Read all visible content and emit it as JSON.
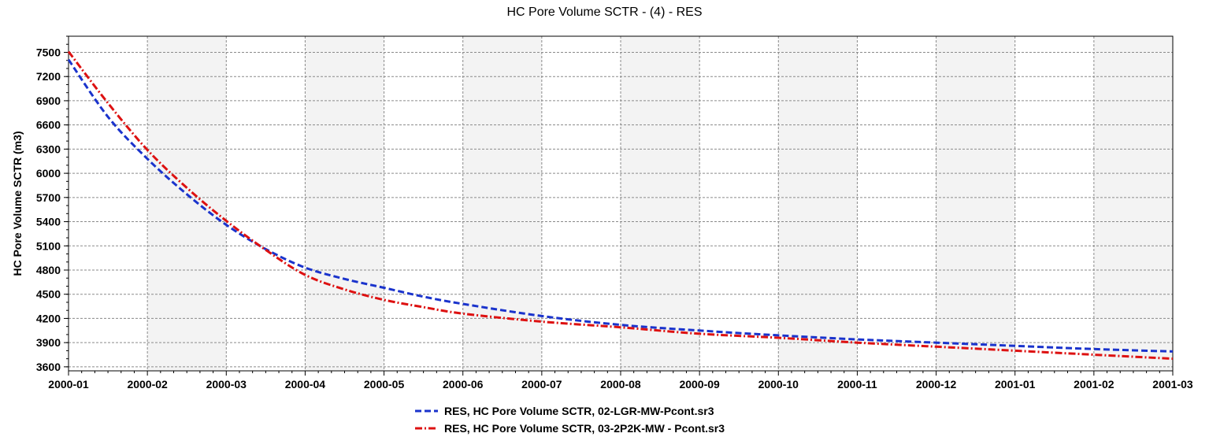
{
  "chart_data": {
    "type": "line",
    "title": "HC Pore Volume SCTR - (4) - RES",
    "xlabel": "",
    "ylabel": "HC Pore Volume SCTR (m3)",
    "x_ticks": [
      "2000-01",
      "2000-02",
      "2000-03",
      "2000-04",
      "2000-05",
      "2000-06",
      "2000-07",
      "2000-08",
      "2000-09",
      "2000-10",
      "2000-11",
      "2000-12",
      "2001-01",
      "2001-02",
      "2001-03"
    ],
    "y_ticks": [
      3600,
      3900,
      4200,
      4500,
      4800,
      5100,
      5400,
      5700,
      6000,
      6300,
      6600,
      6900,
      7200,
      7500
    ],
    "ylim": [
      3550,
      7700
    ],
    "xlim": [
      0,
      14
    ],
    "grid": true,
    "legend_position": "bottom-center",
    "series": [
      {
        "name": "RES, HC Pore Volume SCTR, 02-LGR-MW-Pcont.sr3",
        "color": "#1a33cc",
        "style": "dashed",
        "x": [
          0,
          0.5,
          1,
          1.5,
          2,
          2.5,
          3,
          3.5,
          4,
          4.5,
          5,
          6,
          7,
          8,
          9,
          10,
          11,
          12,
          13,
          14
        ],
        "y": [
          7410,
          6700,
          6180,
          5740,
          5360,
          5060,
          4830,
          4690,
          4580,
          4470,
          4380,
          4230,
          4120,
          4050,
          3990,
          3940,
          3900,
          3860,
          3820,
          3790
        ]
      },
      {
        "name": "RES, HC Pore Volume SCTR, 03-2P2K-MW - Pcont.sr3",
        "color": "#dd1111",
        "style": "dash-dot",
        "x": [
          0,
          0.5,
          1,
          1.5,
          2,
          2.5,
          3,
          3.5,
          4,
          4.5,
          5,
          6,
          7,
          8,
          9,
          10,
          11,
          12,
          13,
          14
        ],
        "y": [
          7510,
          6870,
          6290,
          5820,
          5410,
          5050,
          4740,
          4560,
          4430,
          4340,
          4260,
          4160,
          4090,
          4010,
          3960,
          3900,
          3850,
          3800,
          3750,
          3700
        ]
      }
    ]
  }
}
